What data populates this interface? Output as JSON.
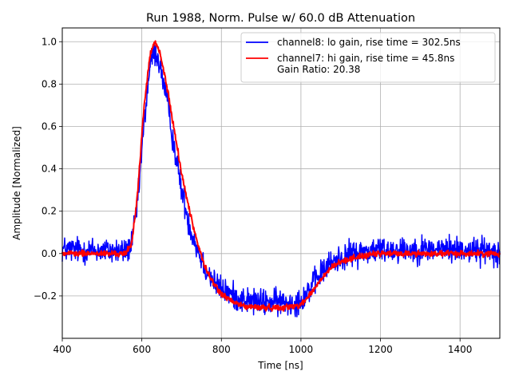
{
  "chart_data": {
    "type": "line",
    "title": "Run 1988, Norm. Pulse w/ 60.0 dB Attenuation",
    "xlabel": "Time [ns]",
    "ylabel": "Amplitude [Normalized]",
    "xlim": [
      400,
      1500
    ],
    "ylim": [
      -0.4,
      1.065
    ],
    "xticks": [
      400,
      600,
      800,
      1000,
      1200,
      1400
    ],
    "yticks": [
      -0.2,
      0.0,
      0.2,
      0.4,
      0.6,
      0.8,
      1.0
    ],
    "grid": true,
    "legend_position": "top-right",
    "series": [
      {
        "name": "channel8: lo gain, rise time = 302.5ns",
        "color": "#0000ff",
        "noise": "high",
        "x": [
          400,
          560,
          575,
          590,
          605,
          620,
          630,
          640,
          650,
          665,
          680,
          700,
          720,
          740,
          760,
          780,
          800,
          830,
          860,
          900,
          940,
          980,
          1000,
          1020,
          1040,
          1060,
          1080,
          1100,
          1130,
          1160,
          1200,
          1300,
          1400,
          1500
        ],
        "y": [
          0.02,
          0.01,
          0.05,
          0.25,
          0.6,
          0.88,
          0.95,
          0.93,
          0.85,
          0.7,
          0.52,
          0.3,
          0.13,
          0.02,
          -0.07,
          -0.13,
          -0.17,
          -0.2,
          -0.22,
          -0.23,
          -0.23,
          -0.23,
          -0.22,
          -0.17,
          -0.12,
          -0.07,
          -0.04,
          -0.02,
          0.0,
          0.01,
          0.02,
          0.02,
          0.02,
          0.01
        ]
      },
      {
        "name": "channel7: hi gain, rise time = 45.8ns\nGain Ratio: 20.38",
        "color": "#ff0000",
        "noise": "low",
        "x": [
          400,
          560,
          575,
          590,
          605,
          620,
          632,
          645,
          660,
          680,
          700,
          720,
          740,
          760,
          780,
          800,
          830,
          860,
          900,
          940,
          980,
          1000,
          1020,
          1040,
          1060,
          1080,
          1100,
          1130,
          1160,
          1200,
          1300,
          1400,
          1500
        ],
        "y": [
          0.0,
          0.0,
          0.05,
          0.3,
          0.68,
          0.93,
          1.0,
          0.95,
          0.82,
          0.6,
          0.38,
          0.2,
          0.05,
          -0.07,
          -0.14,
          -0.19,
          -0.23,
          -0.25,
          -0.255,
          -0.255,
          -0.25,
          -0.24,
          -0.2,
          -0.15,
          -0.1,
          -0.06,
          -0.04,
          -0.02,
          -0.01,
          0.0,
          0.0,
          0.0,
          0.0
        ]
      }
    ]
  }
}
